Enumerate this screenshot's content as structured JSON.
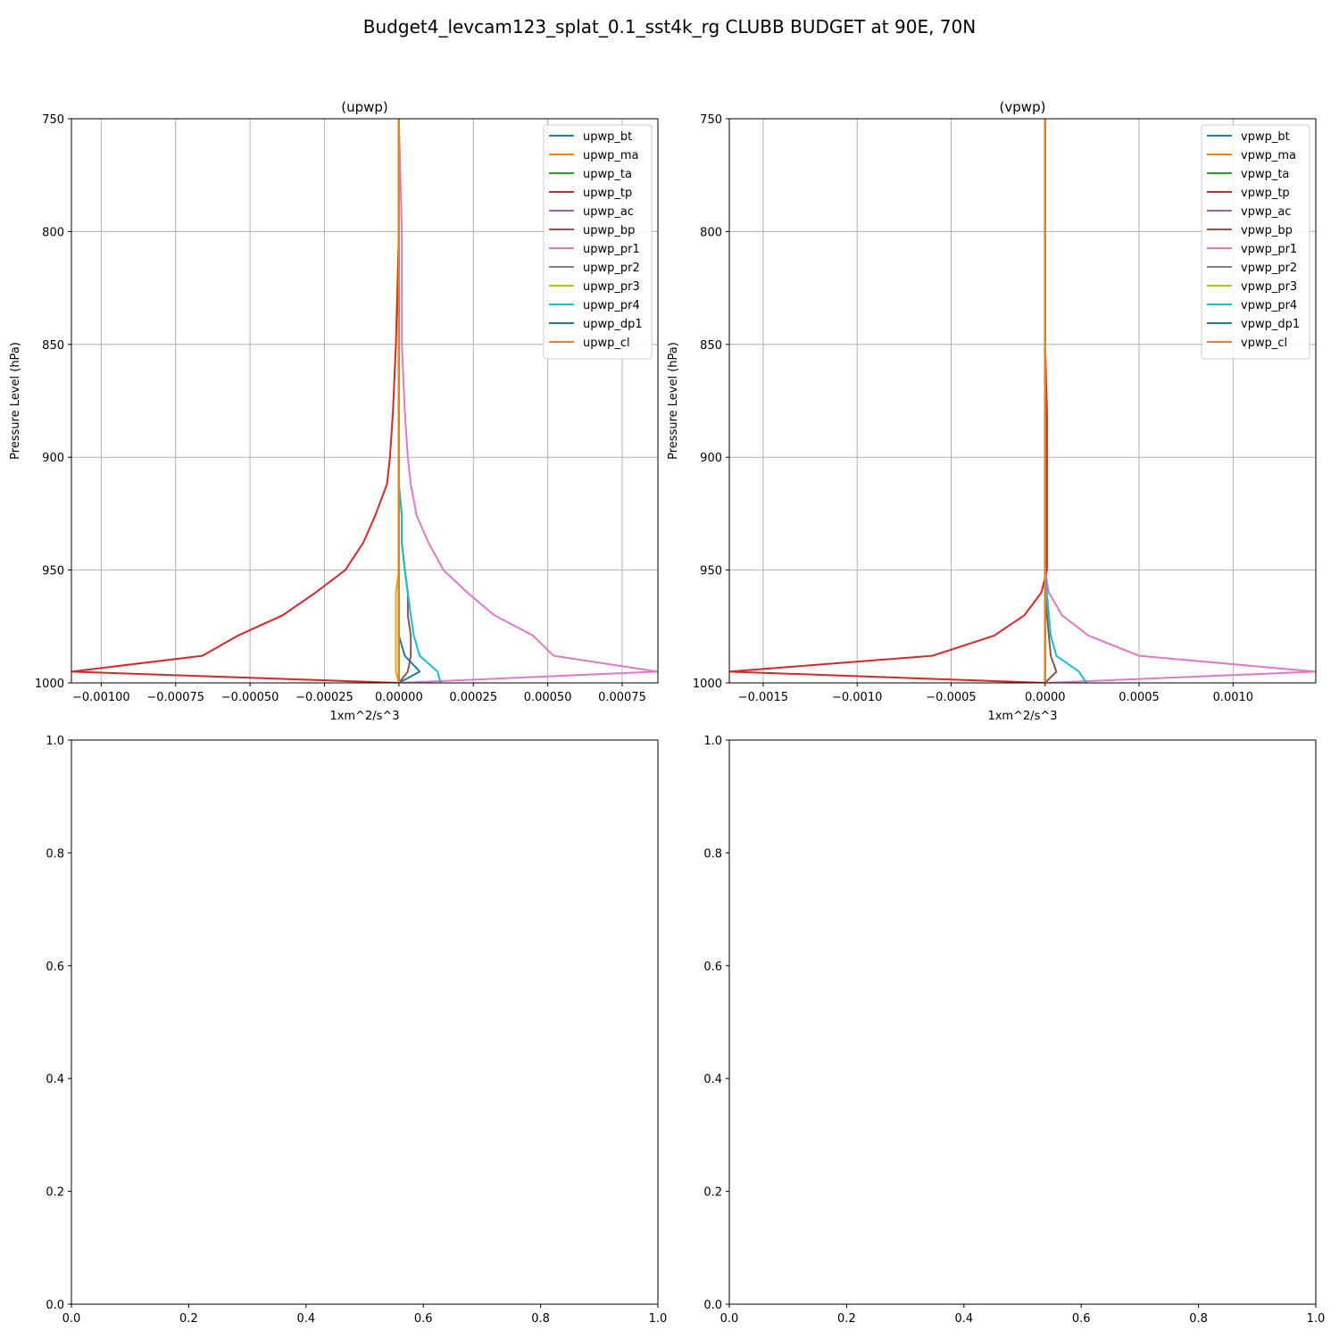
{
  "figure_title": "Budget4_levcam123_splat_0.1_sst4k_rg CLUBB BUDGET at 90E, 70N",
  "colors": [
    "#1f77b4",
    "#ff7f0e",
    "#2ca02c",
    "#d62728",
    "#9467bd",
    "#8c564b",
    "#e377c2",
    "#7f7f7f",
    "#bcbd22",
    "#17becf",
    "#1f77b4",
    "#ff7f0e"
  ],
  "chart_data": [
    {
      "type": "line",
      "title": "(upwp)",
      "xlabel": "1xm^2/s^3",
      "ylabel": "Pressure Level (hPa)",
      "xlim": [
        -0.0011,
        0.00087
      ],
      "ylim": [
        1000,
        750
      ],
      "xticks": [
        -0.001,
        -0.00075,
        -0.0005,
        -0.00025,
        0.0,
        0.00025,
        0.0005,
        0.00075
      ],
      "xtick_labels": [
        "−0.00100",
        "−0.00075",
        "−0.00050",
        "−0.00025",
        "0.00000",
        "0.00025",
        "0.00050",
        "0.00075"
      ],
      "yticks": [
        750,
        800,
        850,
        900,
        950,
        1000
      ],
      "ytick_labels": [
        "750",
        "800",
        "850",
        "900",
        "950",
        "1000"
      ],
      "grid": true,
      "legend": "upper right",
      "levels": [
        750,
        800,
        850,
        880,
        900,
        912,
        926,
        938,
        950,
        960,
        970,
        979,
        988,
        995,
        1000
      ],
      "series": [
        {
          "name": "upwp_bt",
          "values": [
            0,
            0,
            0,
            0,
            0,
            0,
            0,
            0,
            0,
            0,
            0,
            0,
            2e-05,
            7e-05,
            0
          ]
        },
        {
          "name": "upwp_ma",
          "values": [
            0,
            0,
            0,
            0,
            0,
            0,
            0,
            0,
            0,
            0,
            0,
            0,
            0,
            0,
            0
          ]
        },
        {
          "name": "upwp_ta",
          "values": [
            0,
            0,
            0,
            0,
            0,
            0,
            0,
            0,
            0,
            0,
            0,
            0,
            0,
            0,
            0
          ]
        },
        {
          "name": "upwp_tp",
          "values": [
            0,
            0,
            -1e-05,
            -2e-05,
            -3e-05,
            -4e-05,
            -8e-05,
            -0.00012,
            -0.00018,
            -0.00028,
            -0.00039,
            -0.00054,
            -0.00066,
            -0.0011,
            0
          ]
        },
        {
          "name": "upwp_ac",
          "values": [
            0,
            0,
            0,
            0,
            0,
            0,
            0,
            0,
            0,
            0,
            0,
            0,
            0,
            0,
            0
          ]
        },
        {
          "name": "upwp_bp",
          "values": [
            0,
            0,
            0,
            0,
            0,
            0,
            1e-05,
            1e-05,
            2e-05,
            3e-05,
            3e-05,
            4e-05,
            4e-05,
            3e-05,
            0
          ]
        },
        {
          "name": "upwp_pr1",
          "values": [
            0,
            1e-05,
            1e-05,
            2e-05,
            3e-05,
            4e-05,
            6e-05,
            0.0001,
            0.00015,
            0.00023,
            0.00032,
            0.00045,
            0.00052,
            0.00087,
            0
          ]
        },
        {
          "name": "upwp_pr2",
          "values": [
            0,
            0,
            0,
            0,
            0,
            0,
            0,
            0,
            0,
            0,
            0,
            0,
            0,
            0,
            0
          ]
        },
        {
          "name": "upwp_pr3",
          "values": [
            0,
            0,
            0,
            0,
            0,
            0,
            0,
            0,
            0,
            -1e-05,
            -1e-05,
            -1e-05,
            -1e-05,
            -1e-05,
            0
          ]
        },
        {
          "name": "upwp_pr4",
          "values": [
            0,
            0,
            0,
            0,
            0,
            0,
            1e-05,
            1e-05,
            2e-05,
            3e-05,
            4e-05,
            5e-05,
            7e-05,
            0.00013,
            0.00014
          ]
        },
        {
          "name": "upwp_dp1",
          "values": [
            0,
            0,
            0,
            0,
            0,
            0,
            0,
            0,
            0,
            0,
            0,
            0,
            0,
            0,
            0
          ]
        },
        {
          "name": "upwp_cl",
          "values": [
            0,
            0,
            0,
            0,
            0,
            0,
            0,
            0,
            0,
            0,
            0,
            0,
            0,
            0,
            0
          ]
        }
      ]
    },
    {
      "type": "line",
      "title": "(vpwp)",
      "xlabel": "1xm^2/s^3",
      "ylabel": "Pressure Level (hPa)",
      "xlim": [
        -0.00168,
        0.00144
      ],
      "ylim": [
        1000,
        750
      ],
      "xticks": [
        -0.0015,
        -0.001,
        -0.0005,
        0.0,
        0.0005,
        0.001
      ],
      "xtick_labels": [
        "−0.0015",
        "−0.0010",
        "−0.0005",
        "0.0000",
        "0.0005",
        "0.0010"
      ],
      "yticks": [
        750,
        800,
        850,
        900,
        950,
        1000
      ],
      "ytick_labels": [
        "750",
        "800",
        "850",
        "900",
        "950",
        "1000"
      ],
      "grid": true,
      "legend": "upper right",
      "levels": [
        750,
        800,
        850,
        880,
        900,
        912,
        926,
        938,
        950,
        960,
        970,
        979,
        988,
        995,
        1000
      ],
      "series": [
        {
          "name": "vpwp_bt",
          "values": [
            0,
            0,
            0,
            0,
            0,
            0,
            0,
            0,
            0,
            0,
            0,
            0,
            0,
            0,
            0
          ]
        },
        {
          "name": "vpwp_ma",
          "values": [
            0,
            0,
            0,
            0,
            0,
            0,
            0,
            0,
            0,
            0,
            0,
            0,
            0,
            0,
            0
          ]
        },
        {
          "name": "vpwp_ta",
          "values": [
            0,
            0,
            0,
            0,
            0,
            0,
            0,
            0,
            0,
            0,
            0,
            0,
            0,
            0,
            0
          ]
        },
        {
          "name": "vpwp_tp",
          "values": [
            0,
            0,
            0,
            1e-05,
            1e-05,
            1e-05,
            1e-05,
            1e-05,
            1e-05,
            -2e-05,
            -0.00011,
            -0.00027,
            -0.0006,
            -0.00168,
            0
          ]
        },
        {
          "name": "vpwp_ac",
          "values": [
            0,
            0,
            0,
            0,
            0,
            0,
            0,
            0,
            0,
            0,
            0,
            0,
            0,
            0,
            0
          ]
        },
        {
          "name": "vpwp_bp",
          "values": [
            0,
            0,
            0,
            0,
            0,
            0,
            0,
            0,
            0,
            0,
            1e-05,
            2e-05,
            3e-05,
            6e-05,
            0
          ]
        },
        {
          "name": "vpwp_pr1",
          "values": [
            0,
            0,
            0,
            0,
            0,
            0,
            0,
            0,
            0,
            2e-05,
            9e-05,
            0.00023,
            0.0005,
            0.00144,
            0
          ]
        },
        {
          "name": "vpwp_pr2",
          "values": [
            0,
            0,
            0,
            0,
            0,
            0,
            0,
            0,
            0,
            0,
            0,
            0,
            0,
            0,
            0
          ]
        },
        {
          "name": "vpwp_pr3",
          "values": [
            0,
            0,
            0,
            0,
            0,
            0,
            0,
            0,
            0,
            0,
            0,
            0,
            0,
            0,
            0
          ]
        },
        {
          "name": "vpwp_pr4",
          "values": [
            0,
            0,
            0,
            0,
            0,
            0,
            0,
            0,
            0,
            1e-05,
            2e-05,
            3e-05,
            6e-05,
            0.00018,
            0.00022
          ]
        },
        {
          "name": "vpwp_dp1",
          "values": [
            0,
            0,
            0,
            0,
            0,
            0,
            0,
            0,
            0,
            0,
            0,
            0,
            0,
            0,
            0
          ]
        },
        {
          "name": "vpwp_cl",
          "values": [
            0,
            0,
            0,
            0,
            0,
            0,
            0,
            0,
            0,
            0,
            0,
            0,
            0,
            0,
            0
          ]
        }
      ]
    },
    {
      "type": "line",
      "title": "",
      "xlim": [
        0,
        1
      ],
      "ylim": [
        0,
        1
      ],
      "xticks": [
        0,
        0.2,
        0.4,
        0.6,
        0.8,
        1.0
      ],
      "xtick_labels": [
        "0.0",
        "0.2",
        "0.4",
        "0.6",
        "0.8",
        "1.0"
      ],
      "yticks": [
        0,
        0.2,
        0.4,
        0.6,
        0.8,
        1.0
      ],
      "ytick_labels": [
        "0.0",
        "0.2",
        "0.4",
        "0.6",
        "0.8",
        "1.0"
      ],
      "grid": false,
      "series": []
    },
    {
      "type": "line",
      "title": "",
      "xlim": [
        0,
        1
      ],
      "ylim": [
        0,
        1
      ],
      "xticks": [
        0,
        0.2,
        0.4,
        0.6,
        0.8,
        1.0
      ],
      "xtick_labels": [
        "0.0",
        "0.2",
        "0.4",
        "0.6",
        "0.8",
        "1.0"
      ],
      "yticks": [
        0,
        0.2,
        0.4,
        0.6,
        0.8,
        1.0
      ],
      "ytick_labels": [
        "0.0",
        "0.2",
        "0.4",
        "0.6",
        "0.8",
        "1.0"
      ],
      "grid": false,
      "series": []
    }
  ]
}
